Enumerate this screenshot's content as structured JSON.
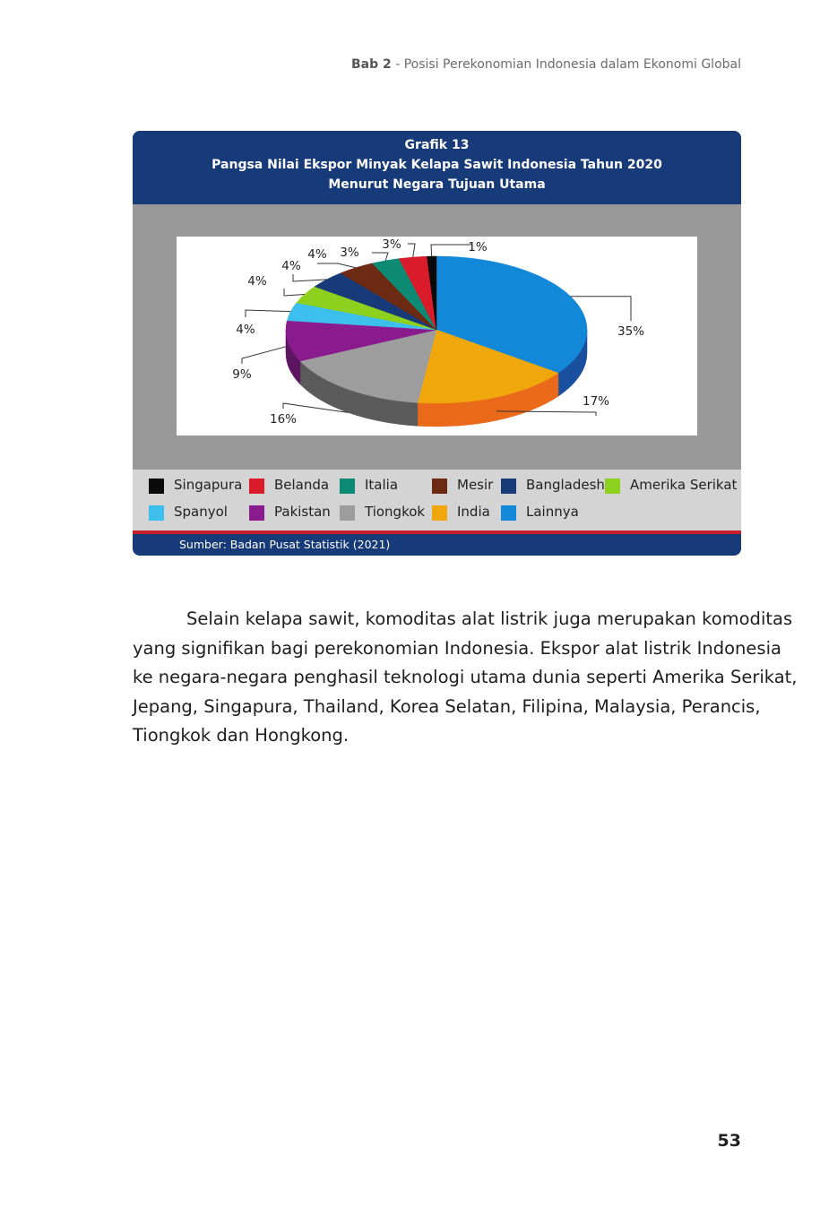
{
  "header": {
    "chapter": "Bab 2",
    "separator": " - ",
    "title": "Posisi Perekonomian Indonesia dalam Ekonomi Global"
  },
  "figure": {
    "number": "Grafik 13",
    "title_line1": "Pangsa Nilai Ekspor Minyak Kelapa Sawit Indonesia Tahun 2020",
    "title_line2": "Menurut Negara Tujuan Utama",
    "source": "Sumber: Badan Pusat Statistik (2021)"
  },
  "chart_data": {
    "type": "pie",
    "title": "Pangsa Nilai Ekspor Minyak Kelapa Sawit Indonesia Tahun 2020 Menurut Negara Tujuan Utama",
    "legend_position": "bottom",
    "slices": [
      {
        "name": "Lainnya",
        "value": 35,
        "label": "35%",
        "color": "#1488d8",
        "side": "#1a4fa0"
      },
      {
        "name": "India",
        "value": 17,
        "label": "17%",
        "color": "#f0a70c",
        "side": "#eb6a1a"
      },
      {
        "name": "Tiongkok",
        "value": 16,
        "label": "16%",
        "color": "#9d9d9d",
        "side": "#5b5b5b"
      },
      {
        "name": "Pakistan",
        "value": 9,
        "label": "9%",
        "color": "#8a1b8f",
        "side": "#5c1560"
      },
      {
        "name": "Spanyol",
        "value": 4,
        "label": "4%",
        "color": "#3dbfed",
        "side": "#2a8fb5"
      },
      {
        "name": "Amerika Serikat",
        "value": 4,
        "label": "4%",
        "color": "#8ed01e",
        "side": "#5f9a10"
      },
      {
        "name": "Bangladesh",
        "value": 4,
        "label": "4%",
        "color": "#173a78",
        "side": "#0e2550"
      },
      {
        "name": "Mesir",
        "value": 4,
        "label": "4%",
        "color": "#6c2a12",
        "side": "#46190a"
      },
      {
        "name": "Italia",
        "value": 3,
        "label": "3%",
        "color": "#0c8a73",
        "side": "#075c4c"
      },
      {
        "name": "Belanda",
        "value": 3,
        "label": "3%",
        "color": "#d91b2a",
        "side": "#8f1019"
      },
      {
        "name": "Singapura",
        "value": 1,
        "label": "1%",
        "color": "#0a0a0a",
        "side": "#000000"
      }
    ],
    "legend_order": [
      "Singapura",
      "Belanda",
      "Italia",
      "Mesir",
      "Bangladesh",
      "Amerika Serikat",
      "Spanyol",
      "Pakistan",
      "Tiongkok",
      "India",
      "Lainnya"
    ]
  },
  "body": {
    "lines": [
      "Selain kelapa sawit, komoditas alat listrik juga merupakan komoditas",
      "yang signifikan bagi perekonomian Indonesia. Ekspor alat listrik Indonesia",
      "ke negara-negara penghasil teknologi utama dunia seperti Amerika Serikat,",
      "Jepang, Singapura, Thailand, Korea Selatan, Filipina, Malaysia, Perancis,",
      "Tiongkok dan Hongkong."
    ]
  },
  "page_number": "53"
}
